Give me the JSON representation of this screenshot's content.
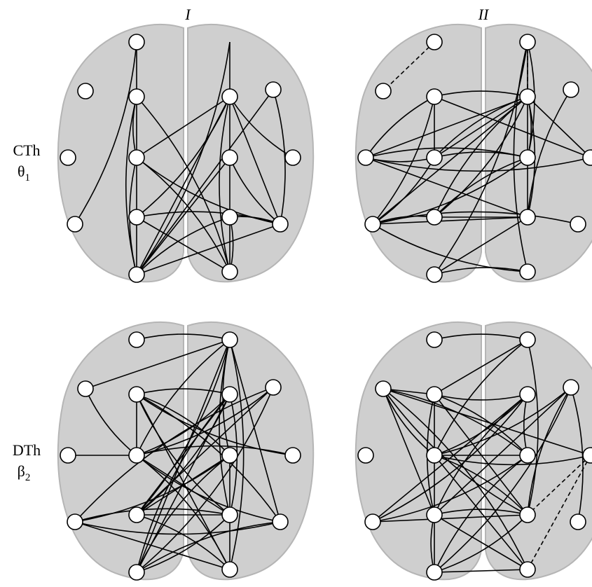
{
  "columns": [
    "I",
    "II"
  ],
  "rows": [
    {
      "label": "CTh",
      "band": "θ",
      "band_index": "1"
    },
    {
      "label": "DTh",
      "band": "β",
      "band_index": "2"
    }
  ]
}
